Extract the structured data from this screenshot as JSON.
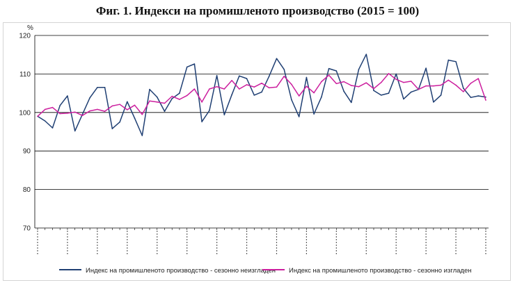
{
  "chart_data": {
    "type": "line",
    "title": "Фиг. 1. Индекси на промишленото производство (2015 = 100)",
    "ylabel": "%",
    "ylim": [
      70,
      120
    ],
    "yticks": [
      70,
      80,
      90,
      100,
      110,
      120
    ],
    "grid": true,
    "legend_position": "bottom",
    "series": [
      {
        "name": "Индекс на промишленото производство - сезонно  неизгладен",
        "color": "#1f3f73",
        "values": [
          99.0,
          97.8,
          96.0,
          101.8,
          104.3,
          95.2,
          99.5,
          103.8,
          106.5,
          106.5,
          95.8,
          97.5,
          102.8,
          98.5,
          94.0,
          106.0,
          104.0,
          100.3,
          103.6,
          105.0,
          111.8,
          112.6,
          97.6,
          100.5,
          109.6,
          99.4,
          104.6,
          109.5,
          108.8,
          104.5,
          105.3,
          109.4,
          114.0,
          111.2,
          103.3,
          98.9,
          109.1,
          99.6,
          104.0,
          111.4,
          110.8,
          105.5,
          102.6,
          111.2,
          115.1,
          105.7,
          104.5,
          105.0,
          110.0,
          103.5,
          105.3,
          106.0,
          111.5,
          102.7,
          104.5,
          113.6,
          113.2,
          106.3,
          103.9,
          104.3,
          104.0
        ]
      },
      {
        "name": "Индекс на промишленото производство - сезонно изгладен",
        "color": "#cc1f9e",
        "values": [
          99.0,
          100.8,
          101.3,
          99.7,
          99.8,
          100.1,
          99.2,
          100.4,
          100.8,
          100.3,
          101.7,
          102.1,
          100.7,
          101.9,
          99.5,
          103.0,
          102.7,
          102.4,
          104.2,
          103.4,
          104.4,
          106.1,
          102.7,
          106.1,
          106.7,
          106.1,
          108.3,
          106.1,
          107.2,
          106.6,
          107.6,
          106.4,
          106.6,
          109.4,
          107.3,
          104.3,
          106.8,
          105.1,
          108.0,
          109.7,
          107.5,
          108.0,
          107.0,
          106.7,
          107.7,
          106.2,
          107.8,
          110.1,
          108.6,
          107.8,
          108.1,
          106.0,
          106.9,
          106.9,
          107.1,
          108.4,
          107.1,
          105.4,
          107.6,
          108.8,
          103.2
        ]
      }
    ]
  }
}
